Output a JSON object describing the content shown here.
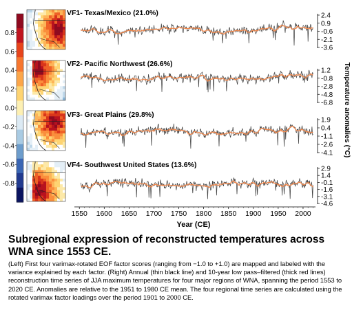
{
  "chart_data": {
    "type": "line",
    "xlabel": "Year (CE)",
    "ylabel": "Temperature anomalies (°C)",
    "xlim": [
      1540,
      2025
    ],
    "x_ticks": [
      "1550",
      "1600",
      "1650",
      "1700",
      "1750",
      "1800",
      "1850",
      "1900",
      "1950",
      "2000"
    ],
    "colorbar": {
      "ticks": [
        "0.8",
        "0.6",
        "0.4",
        "0.2",
        "0.0",
        "-0.2",
        "-0.4",
        "-0.6",
        "-0.8"
      ],
      "range": [
        -1.0,
        1.0
      ],
      "colors": [
        "#0b1460",
        "#213a8f",
        "#3a66b4",
        "#6d9dcc",
        "#a9cbe3",
        "#dceaf4",
        "#fdf0b3",
        "#fed472",
        "#fca64a",
        "#f7772f",
        "#e7441c",
        "#c01520",
        "#8f0a20"
      ]
    },
    "series_colors": {
      "annual": "#444444",
      "lowpass": "#f2884c"
    },
    "panels": [
      {
        "label": "VF1- Texas/Mexico (21.0%)",
        "yticks": [
          "2.4",
          "0.9",
          "-0.6",
          "-2.1",
          "-3.6"
        ],
        "ylim": [
          -4.2,
          3.0
        ],
        "mean": -0.35,
        "trend": 0.55,
        "amp": 0.7,
        "seed": 11,
        "hot": [
          0.82,
          0.5
        ]
      },
      {
        "label": "VF2- Pacific Northwest (26.6%)",
        "yticks": [
          "1.2",
          "-0.8",
          "-2.8",
          "-4.8",
          "-6.8"
        ],
        "ylim": [
          -7.6,
          2.0
        ],
        "mean": -0.6,
        "trend": 0.7,
        "amp": 1.0,
        "seed": 23,
        "hot": [
          0.3,
          0.2
        ]
      },
      {
        "label": "VF3- Great Plains (29.8%)",
        "yticks": [
          "1.9",
          "0.4",
          "-1.1",
          "-2.6",
          "-4.1"
        ],
        "ylim": [
          -4.7,
          2.5
        ],
        "mean": -0.3,
        "trend": 0.45,
        "amp": 0.75,
        "seed": 37,
        "hot": [
          0.7,
          0.25
        ]
      },
      {
        "label": "VF4- Southwest United States (13.6%)",
        "yticks": [
          "2.9",
          "1.4",
          "-0.1",
          "-1.6",
          "-3.1",
          "-4.6"
        ],
        "ylim": [
          -5.2,
          3.5
        ],
        "mean": -0.5,
        "trend": 0.7,
        "amp": 0.8,
        "seed": 51,
        "hot": [
          0.35,
          0.72
        ]
      }
    ]
  },
  "caption": {
    "title": "Subregional expression of reconstructed temperatures across WNA since 1553 CE.",
    "body": "(Left) First four varimax-rotated EOF factor scores (ranging from −1.0 to +1.0) are mapped and labeled with the variance explained by each factor. (Right) Annual (thin black line) and 10-year low pass–filtered (thick red lines) reconstruction time series of JJA maximum temperatures for four major regions of WNA, spanning the period 1553 to 2020 CE. Anomalies are relative to the 1951 to 1980 CE mean. The four regional time series are calculated using the rotated varimax factor loadings over the period 1901 to 2000 CE."
  }
}
